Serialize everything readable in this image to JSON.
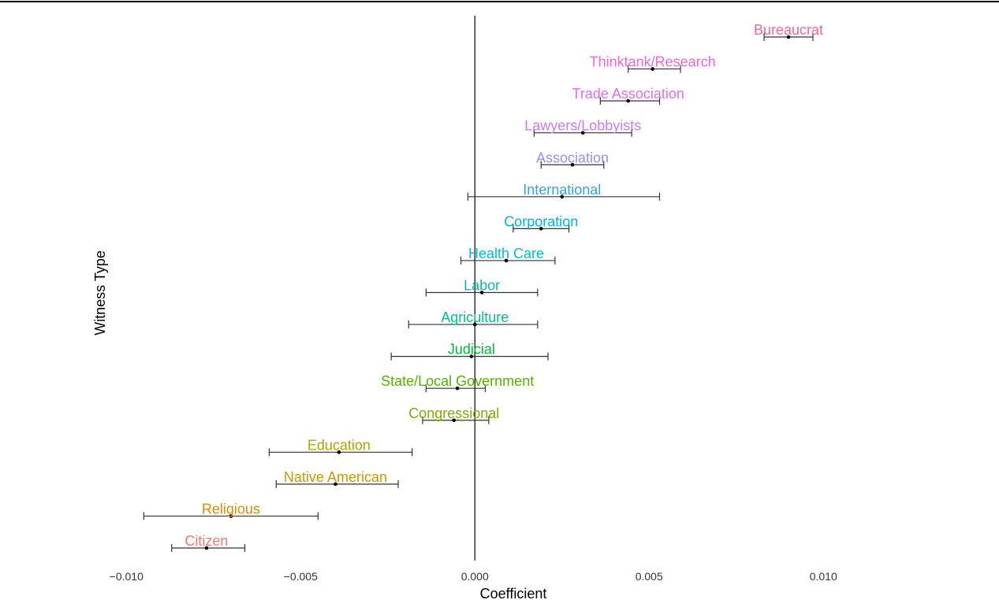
{
  "chart_data": {
    "type": "scatter",
    "subtype": "coefficient-plot-with-error-bars",
    "title": "",
    "xlabel": "Coefficient",
    "ylabel": "Witness Type",
    "xlim": [
      -0.0103,
      0.0128
    ],
    "xticks": [
      -0.01,
      -0.005,
      0.0,
      0.005,
      0.01
    ],
    "xtick_labels": [
      "−0.010",
      "−0.005",
      "0.000",
      "0.005",
      "0.010"
    ],
    "reference_line_x": 0,
    "grid": false,
    "legend": "none",
    "points": [
      {
        "label": "Bureaucrat",
        "estimate": 0.009,
        "lower": 0.0083,
        "upper": 0.0097,
        "color": "#f0679a"
      },
      {
        "label": "Thinktank/Research",
        "estimate": 0.0051,
        "lower": 0.0044,
        "upper": 0.0059,
        "color": "#f564d4"
      },
      {
        "label": "Trade Association",
        "estimate": 0.0044,
        "lower": 0.0036,
        "upper": 0.0053,
        "color": "#e46ef6"
      },
      {
        "label": "Lawyers/Lobbyists",
        "estimate": 0.0031,
        "lower": 0.0017,
        "upper": 0.0045,
        "color": "#c77cff"
      },
      {
        "label": "Association",
        "estimate": 0.0028,
        "lower": 0.0019,
        "upper": 0.0037,
        "color": "#9590ff"
      },
      {
        "label": "International",
        "estimate": 0.0025,
        "lower": -0.0002,
        "upper": 0.0053,
        "color": "#35a2f0"
      },
      {
        "label": "Corporation",
        "estimate": 0.0019,
        "lower": 0.0011,
        "upper": 0.0027,
        "color": "#00b0e8"
      },
      {
        "label": "Health Care",
        "estimate": 0.0009,
        "lower": -0.0004,
        "upper": 0.0023,
        "color": "#00bcd2"
      },
      {
        "label": "Labor",
        "estimate": 0.0002,
        "lower": -0.0014,
        "upper": 0.0018,
        "color": "#00bfaa"
      },
      {
        "label": "Agriculture",
        "estimate": 0.0,
        "lower": -0.0019,
        "upper": 0.0018,
        "color": "#00c08a"
      },
      {
        "label": "Judicial",
        "estimate": -0.0001,
        "lower": -0.0024,
        "upper": 0.0021,
        "color": "#00ba38"
      },
      {
        "label": "State/Local Government",
        "estimate": -0.0005,
        "lower": -0.0014,
        "upper": 0.0003,
        "color": "#53b400"
      },
      {
        "label": "Congressional",
        "estimate": -0.0006,
        "lower": -0.0015,
        "upper": 0.0004,
        "color": "#7cae00"
      },
      {
        "label": "Education",
        "estimate": -0.0039,
        "lower": -0.0059,
        "upper": -0.0018,
        "color": "#b5a200"
      },
      {
        "label": "Native American",
        "estimate": -0.004,
        "lower": -0.0057,
        "upper": -0.0022,
        "color": "#cd9600"
      },
      {
        "label": "Religious",
        "estimate": -0.007,
        "lower": -0.0095,
        "upper": -0.0045,
        "color": "#e18a00"
      },
      {
        "label": "Citizen",
        "estimate": -0.0077,
        "lower": -0.0087,
        "upper": -0.0066,
        "color": "#f8766d"
      }
    ],
    "colors": {
      "axis": "#000000",
      "point": "#000000",
      "errorbar": "#333333",
      "tick_text": "#333333"
    }
  }
}
